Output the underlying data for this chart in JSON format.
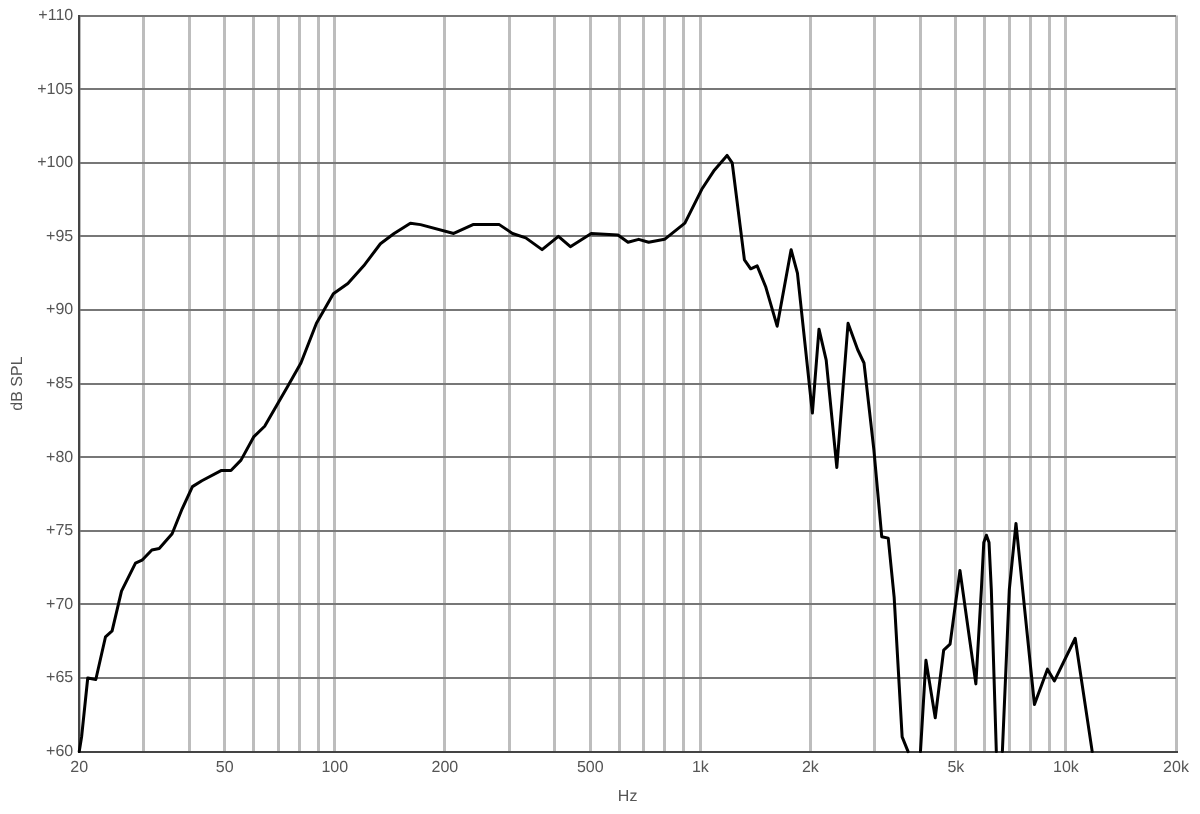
{
  "chart_data": {
    "type": "line",
    "xlabel": "Hz",
    "ylabel": "dB SPL",
    "log": "x",
    "grid": true,
    "legend": false,
    "marker": "none",
    "line_style": "solid",
    "xlim": [
      20,
      20000
    ],
    "ylim": [
      60,
      110
    ],
    "xticks": [
      20,
      {
        "value": 30,
        "label": null
      },
      {
        "value": 40,
        "label": null
      },
      50,
      {
        "value": 60,
        "label": null
      },
      {
        "value": 70,
        "label": null
      },
      {
        "value": 80,
        "label": null
      },
      {
        "value": 90,
        "label": null
      },
      100,
      200,
      {
        "value": 300,
        "label": null
      },
      {
        "value": 400,
        "label": null
      },
      500,
      {
        "value": 600,
        "label": null
      },
      {
        "value": 700,
        "label": null
      },
      {
        "value": 800,
        "label": null
      },
      {
        "value": 900,
        "label": null
      },
      {
        "value": 1000,
        "label": "1k"
      },
      {
        "value": 2000,
        "label": "2k"
      },
      {
        "value": 3000,
        "label": null
      },
      {
        "value": 4000,
        "label": null
      },
      {
        "value": 5000,
        "label": "5k"
      },
      {
        "value": 6000,
        "label": null
      },
      {
        "value": 7000,
        "label": null
      },
      {
        "value": 8000,
        "label": null
      },
      {
        "value": 9000,
        "label": null
      },
      {
        "value": 10000,
        "label": "10k"
      },
      {
        "value": 20000,
        "label": "20k"
      }
    ],
    "yticks": [
      {
        "value": 60,
        "label": "+60"
      },
      {
        "value": 65,
        "label": "+65"
      },
      {
        "value": 70,
        "label": "+70"
      },
      {
        "value": 75,
        "label": "+75"
      },
      {
        "value": 80,
        "label": "+80"
      },
      {
        "value": 85,
        "label": "+85"
      },
      {
        "value": 90,
        "label": "+90"
      },
      {
        "value": 95,
        "label": "+95"
      },
      {
        "value": 100,
        "label": "+100"
      },
      {
        "value": 105,
        "label": "+105"
      },
      {
        "value": 110,
        "label": "+110"
      }
    ],
    "series": [
      {
        "color": "#000000",
        "x": [
          20,
          20.3,
          21.1,
          22.2,
          23.6,
          24.6,
          26.1,
          28.5,
          29.7,
          31.6,
          33.1,
          35.9,
          38.1,
          40.8,
          43.3,
          49,
          52,
          55.4,
          60.1,
          64.3,
          74.3,
          80.8,
          89.1,
          99.1,
          108.6,
          120,
          133.3,
          145.3,
          161,
          171.6,
          211.5,
          238.8,
          281.9,
          306.3,
          333,
          369,
          409,
          441,
          503,
          595,
          634,
          678,
          722,
          798,
          907,
          1009,
          1092,
          1183,
          1222,
          1320,
          1373,
          1430,
          1508,
          1622,
          1771,
          1843,
          2025,
          2111,
          2209,
          2362,
          2535,
          2694,
          2803,
          2983,
          3134,
          3265,
          3389,
          3564,
          3700,
          3800,
          4000,
          4140,
          4390,
          4630,
          4820,
          5130,
          5670,
          5870,
          5960,
          6060,
          6160,
          6250,
          6450,
          6550,
          6700,
          7000,
          7300,
          7650,
          8200,
          8900,
          9300,
          10600,
          11800
        ],
        "values": [
          60,
          61,
          65,
          64.9,
          67.8,
          68.2,
          70.9,
          72.8,
          73,
          73.7,
          73.8,
          74.8,
          76.4,
          78,
          78.4,
          79.1,
          79.1,
          79.8,
          81.4,
          82.1,
          84.8,
          86.4,
          89.1,
          91.1,
          91.8,
          93,
          94.5,
          95.2,
          95.9,
          95.8,
          95.2,
          95.8,
          95.8,
          95.2,
          94.9,
          94.1,
          95,
          94.3,
          95.2,
          95.1,
          94.6,
          94.8,
          94.6,
          94.8,
          95.9,
          98.2,
          99.5,
          100.5,
          100,
          93.4,
          92.8,
          93,
          91.6,
          88.9,
          94.1,
          92.5,
          83,
          88.7,
          86.6,
          79.3,
          89.1,
          87.3,
          86.4,
          80.5,
          74.6,
          74.5,
          70.5,
          61,
          60,
          null,
          60,
          66.2,
          62.3,
          66.9,
          67.3,
          72.3,
          64.6,
          71,
          74.2,
          74.7,
          74.2,
          71,
          60,
          null,
          60,
          71,
          75.5,
          70.5,
          63.2,
          65.6,
          64.8,
          67.7,
          60
        ]
      }
    ]
  }
}
